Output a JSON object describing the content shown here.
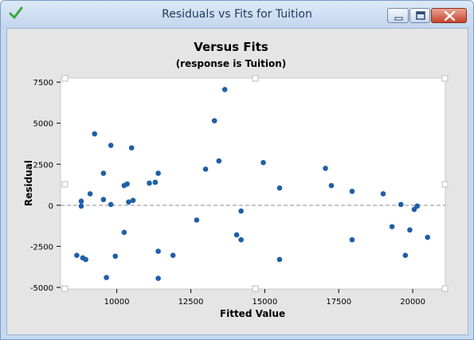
{
  "window": {
    "title": "Residuals vs Fits for Tuition",
    "app_icon": "green-checkmark-icon",
    "buttons": {
      "minimize": "minimize-icon",
      "maximize": "maximize-icon",
      "close": "close-icon"
    }
  },
  "chart_data": {
    "type": "scatter",
    "title": "Versus Fits",
    "subtitle": "(response is Tuition)",
    "xlabel": "Fitted Value",
    "ylabel": "Residual",
    "xlim": [
      8100,
      21100
    ],
    "ylim": [
      -5100,
      7750
    ],
    "x_ticks": [
      10000,
      12500,
      15000,
      17500,
      20000
    ],
    "x_tick_labels": [
      "10000",
      "12500",
      "15000",
      "17500",
      "20000"
    ],
    "y_ticks": [
      -5000,
      -2500,
      0,
      2500,
      5000,
      7500
    ],
    "y_tick_labels": [
      "-5000",
      "-2500",
      "0",
      "2500",
      "5000",
      "7500"
    ],
    "reference_line": {
      "y": 0,
      "style": "dashed"
    },
    "grid": false,
    "marker_color": "#1f5ea8",
    "points": [
      [
        8650,
        -3050
      ],
      [
        8800,
        250
      ],
      [
        8800,
        -50
      ],
      [
        8850,
        -3200
      ],
      [
        8950,
        -3300
      ],
      [
        9100,
        700
      ],
      [
        9250,
        4350
      ],
      [
        9550,
        1950
      ],
      [
        9550,
        350
      ],
      [
        9650,
        -4400
      ],
      [
        9800,
        3650
      ],
      [
        9800,
        50
      ],
      [
        9950,
        -3100
      ],
      [
        10250,
        1200
      ],
      [
        10250,
        -1650
      ],
      [
        10350,
        1300
      ],
      [
        10400,
        200
      ],
      [
        10500,
        3500
      ],
      [
        10550,
        300
      ],
      [
        11100,
        1350
      ],
      [
        11300,
        1400
      ],
      [
        11400,
        1950
      ],
      [
        11400,
        -2800
      ],
      [
        11400,
        -4450
      ],
      [
        11900,
        -3050
      ],
      [
        12700,
        -900
      ],
      [
        13000,
        2200
      ],
      [
        13300,
        5150
      ],
      [
        13450,
        2700
      ],
      [
        13650,
        7050
      ],
      [
        14050,
        -1800
      ],
      [
        14200,
        -350
      ],
      [
        14200,
        -2100
      ],
      [
        14950,
        2600
      ],
      [
        15500,
        1050
      ],
      [
        15500,
        -3300
      ],
      [
        17050,
        2250
      ],
      [
        17250,
        1200
      ],
      [
        17950,
        850
      ],
      [
        17950,
        -2100
      ],
      [
        19000,
        700
      ],
      [
        19300,
        -1300
      ],
      [
        19600,
        50
      ],
      [
        19750,
        -3050
      ],
      [
        19900,
        -1500
      ],
      [
        20050,
        -250
      ],
      [
        20150,
        -50
      ],
      [
        20500,
        -1950
      ]
    ]
  }
}
